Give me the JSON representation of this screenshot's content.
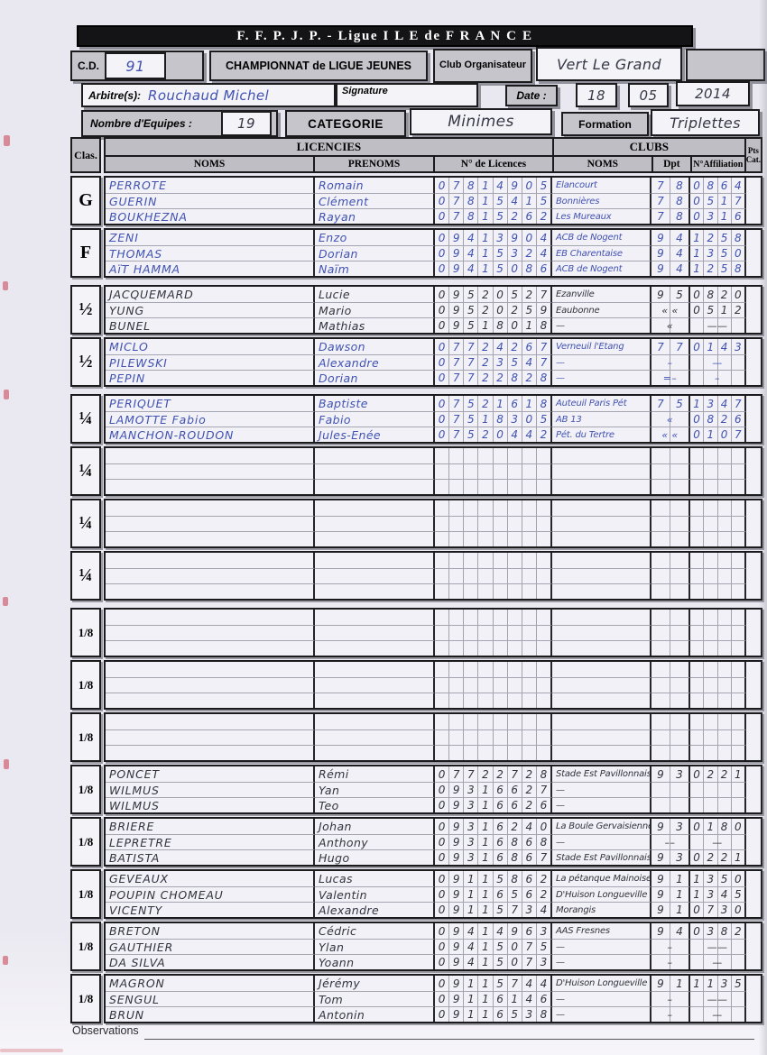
{
  "header": {
    "title": "F. F. P. J. P. -  Ligue  I L E  de  F R A N C E",
    "cd_label": "C.D.",
    "cd_value": "91",
    "championship": "CHAMPIONNAT de LIGUE JEUNES",
    "club_org_label": "Club Organisateur",
    "club_org_value": "Vert Le Grand",
    "arbitre_label": "Arbitre(s):",
    "arbitre_value": "Rouchaud Michel",
    "signature_label": "Signature",
    "date_label": "Date :",
    "date_day": "18",
    "date_month": "05",
    "date_year": "2014",
    "nb_equipes_label": "Nombre d'Equipes :",
    "nb_equipes_value": "19",
    "categorie_label": "CATEGORIE",
    "categorie_value": "Minimes",
    "formation_label": "Formation",
    "formation_value": "Triplettes"
  },
  "table": {
    "col_clas": "Clas.",
    "col_licencies": "LICENCIES",
    "col_clubs": "CLUBS",
    "col_noms": "NOMS",
    "col_prenoms": "PRENOMS",
    "col_licences": "N° de Licences",
    "col_club_noms": "NOMS",
    "col_dpt": "Dpt",
    "col_affiliation": "N°Affiliation",
    "col_pts": "Pts",
    "col_cat": "Cat.",
    "tiers": [
      {
        "blocks": [
          {
            "label": "G",
            "ink": "blue",
            "rows": [
              {
                "nom": "PERROTE",
                "prenom": "Romain",
                "lic": "07814905",
                "club": "Elancourt",
                "dpt": "78",
                "aff": "0864"
              },
              {
                "nom": "GUERIN",
                "prenom": "Clément",
                "lic": "07815415",
                "club": "Bonnières",
                "dpt": "78",
                "aff": "0517"
              },
              {
                "nom": "BOUKHEZNA",
                "prenom": "Rayan",
                "lic": "07815262",
                "club": "Les Mureaux",
                "dpt": "78",
                "aff": "0316"
              }
            ]
          },
          {
            "label": "F",
            "ink": "blue",
            "rows": [
              {
                "nom": "ZENI",
                "prenom": "Enzo",
                "lic": "09413904",
                "club": "ACB de Nogent",
                "dpt": "94",
                "aff": "1258"
              },
              {
                "nom": "THOMAS",
                "prenom": "Dorian",
                "lic": "09415324",
                "club": "EB Charentaise",
                "dpt": "94",
                "aff": "1350"
              },
              {
                "nom": "AïT HAMMA",
                "prenom": "Naïm",
                "lic": "09415086",
                "club": "ACB de Nogent",
                "dpt": "94",
                "aff": "1258"
              }
            ]
          }
        ]
      },
      {
        "blocks": [
          {
            "label": "½",
            "ink": "dark",
            "rows": [
              {
                "nom": "JACQUEMARD",
                "prenom": "Lucie",
                "lic": "09520527",
                "club": "Ezanville",
                "dpt": "95",
                "aff": "0820"
              },
              {
                "nom": "YUNG",
                "prenom": "Mario",
                "lic": "09520259",
                "club": "Eaubonne",
                "dpt": "« «",
                "aff": "0512"
              },
              {
                "nom": "BUNEL",
                "prenom": "Mathias",
                "lic": "09518018",
                "club": "—",
                "dpt": "«",
                "aff": "——"
              }
            ]
          },
          {
            "label": "½",
            "ink": "blue",
            "rows": [
              {
                "nom": "MICLO",
                "prenom": "Dawson",
                "lic": "07724267",
                "club": "Verneuil l'Etang",
                "dpt": "77",
                "aff": "0143"
              },
              {
                "nom": "PILEWSKI",
                "prenom": "Alexandre",
                "lic": "07723547",
                "club": "—",
                "dpt": "–",
                "aff": "—"
              },
              {
                "nom": "PEPIN",
                "prenom": "Dorian",
                "lic": "07722828",
                "club": "—",
                "dpt": "=–",
                "aff": "–"
              }
            ]
          }
        ]
      },
      {
        "blocks": [
          {
            "label": "¼",
            "ink": "blue",
            "rows": [
              {
                "nom": "PERIQUET",
                "prenom": "Baptiste",
                "lic": "07521618",
                "club": "Auteuil Paris Pét",
                "dpt": "75",
                "aff": "1347"
              },
              {
                "nom": "LAMOTTE Fabio",
                "prenom": "Fabio",
                "lic": "07518305",
                "club": "AB 13",
                "dpt": "«",
                "aff": "0826"
              },
              {
                "nom": "MANCHON-ROUDON",
                "prenom": "Jules-Enée",
                "lic": "07520442",
                "club": "Pét. du Tertre",
                "dpt": "« «",
                "aff": "0107"
              }
            ]
          },
          {
            "label": "¼",
            "ink": "dark",
            "rows": [
              {
                "nom": "",
                "prenom": "",
                "lic": "",
                "club": "",
                "dpt": "",
                "aff": ""
              },
              {
                "nom": "",
                "prenom": "",
                "lic": "",
                "club": "",
                "dpt": "",
                "aff": ""
              },
              {
                "nom": "",
                "prenom": "",
                "lic": "",
                "club": "",
                "dpt": "",
                "aff": ""
              }
            ]
          },
          {
            "label": "¼",
            "ink": "dark",
            "rows": [
              {
                "nom": "",
                "prenom": "",
                "lic": "",
                "club": "",
                "dpt": "",
                "aff": ""
              },
              {
                "nom": "",
                "prenom": "",
                "lic": "",
                "club": "",
                "dpt": "",
                "aff": ""
              },
              {
                "nom": "",
                "prenom": "",
                "lic": "",
                "club": "",
                "dpt": "",
                "aff": ""
              }
            ]
          },
          {
            "label": "¼",
            "ink": "dark",
            "rows": [
              {
                "nom": "",
                "prenom": "",
                "lic": "",
                "club": "",
                "dpt": "",
                "aff": ""
              },
              {
                "nom": "",
                "prenom": "",
                "lic": "",
                "club": "",
                "dpt": "",
                "aff": ""
              },
              {
                "nom": "",
                "prenom": "",
                "lic": "",
                "club": "",
                "dpt": "",
                "aff": ""
              }
            ]
          }
        ]
      },
      {
        "blocks": [
          {
            "label": "1/8",
            "ink": "dark",
            "rows": [
              {
                "nom": "",
                "prenom": "",
                "lic": "",
                "club": "",
                "dpt": "",
                "aff": ""
              },
              {
                "nom": "",
                "prenom": "",
                "lic": "",
                "club": "",
                "dpt": "",
                "aff": ""
              },
              {
                "nom": "",
                "prenom": "",
                "lic": "",
                "club": "",
                "dpt": "",
                "aff": ""
              }
            ]
          },
          {
            "label": "1/8",
            "ink": "dark",
            "rows": [
              {
                "nom": "",
                "prenom": "",
                "lic": "",
                "club": "",
                "dpt": "",
                "aff": ""
              },
              {
                "nom": "",
                "prenom": "",
                "lic": "",
                "club": "",
                "dpt": "",
                "aff": ""
              },
              {
                "nom": "",
                "prenom": "",
                "lic": "",
                "club": "",
                "dpt": "",
                "aff": ""
              }
            ]
          },
          {
            "label": "1/8",
            "ink": "dark",
            "rows": [
              {
                "nom": "",
                "prenom": "",
                "lic": "",
                "club": "",
                "dpt": "",
                "aff": ""
              },
              {
                "nom": "",
                "prenom": "",
                "lic": "",
                "club": "",
                "dpt": "",
                "aff": ""
              },
              {
                "nom": "",
                "prenom": "",
                "lic": "",
                "club": "",
                "dpt": "",
                "aff": ""
              }
            ]
          },
          {
            "label": "1/8",
            "ink": "dark",
            "rows": [
              {
                "nom": "PONCET",
                "prenom": "Rémi",
                "lic": "07722728",
                "club": "Stade Est Pavillonnais",
                "dpt": "93",
                "aff": "0221"
              },
              {
                "nom": "WILMUS",
                "prenom": "Yan",
                "lic": "09316627",
                "club": "—",
                "dpt": "",
                "aff": ""
              },
              {
                "nom": "WILMUS",
                "prenom": "Teo",
                "lic": "09316626",
                "club": "—",
                "dpt": "",
                "aff": ""
              }
            ]
          },
          {
            "label": "1/8",
            "ink": "dark",
            "rows": [
              {
                "nom": "BRIERE",
                "prenom": "Johan",
                "lic": "09316240",
                "club": "La Boule Gervaisienne",
                "dpt": "93",
                "aff": "0180"
              },
              {
                "nom": "LEPRETRE",
                "prenom": "Anthony",
                "lic": "09316868",
                "club": "—",
                "dpt": "––",
                "aff": "—"
              },
              {
                "nom": "BATISTA",
                "prenom": "Hugo",
                "lic": "09316867",
                "club": "Stade Est Pavillonnais",
                "dpt": "93",
                "aff": "0221"
              }
            ]
          },
          {
            "label": "1/8",
            "ink": "dark",
            "rows": [
              {
                "nom": "GEVEAUX",
                "prenom": "Lucas",
                "lic": "09115862",
                "club": "La pétanque Mainoise",
                "dpt": "91",
                "aff": "1350"
              },
              {
                "nom": "POUPIN CHOMEAU",
                "prenom": "Valentin",
                "lic": "09116562",
                "club": "D'Huison Longueville",
                "dpt": "91",
                "aff": "1345"
              },
              {
                "nom": "VICENTY",
                "prenom": "Alexandre",
                "lic": "09115734",
                "club": "Morangis",
                "dpt": "91",
                "aff": "0730"
              }
            ]
          },
          {
            "label": "1/8",
            "ink": "dark",
            "rows": [
              {
                "nom": "BRETON",
                "prenom": "Cédric",
                "lic": "09414963",
                "club": "AAS Fresnes",
                "dpt": "94",
                "aff": "0382"
              },
              {
                "nom": "GAUTHIER",
                "prenom": "Ylan",
                "lic": "09415075",
                "club": "—",
                "dpt": "–",
                "aff": "——"
              },
              {
                "nom": "DA SILVA",
                "prenom": "Yoann",
                "lic": "09415073",
                "club": "—",
                "dpt": "–",
                "aff": "—"
              }
            ]
          },
          {
            "label": "1/8",
            "ink": "dark",
            "rows": [
              {
                "nom": "MAGRON",
                "prenom": "Jérémy",
                "lic": "09115744",
                "club": "D'Huison Longueville",
                "dpt": "91",
                "aff": "1135"
              },
              {
                "nom": "SENGUL",
                "prenom": "Tom",
                "lic": "09116146",
                "club": "—",
                "dpt": "–",
                "aff": "——"
              },
              {
                "nom": "BRUN",
                "prenom": "Antonin",
                "lic": "09116538",
                "club": "—",
                "dpt": "–",
                "aff": "—"
              }
            ]
          }
        ]
      }
    ]
  },
  "footer": {
    "observations_label": "Observations"
  },
  "colors": {
    "ink_blue": "#4052b2",
    "ink_dark": "#32343e",
    "box_gray": "#c6c5cb",
    "bar_black": "#141416",
    "paper": "#eae9f1"
  }
}
